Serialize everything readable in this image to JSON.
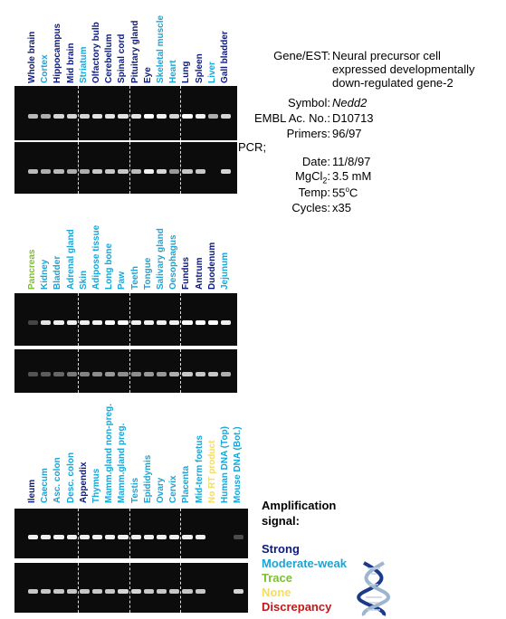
{
  "colors": {
    "strong": "#0d1a7a",
    "moderate_weak": "#19a5d6",
    "trace": "#7dbf2e",
    "none": "#f2dc6a",
    "discrepancy": "#c0181a",
    "gel": "#0c0c0c"
  },
  "panels": [
    {
      "tissues": [
        {
          "name": "Whole brain",
          "signal": "strong"
        },
        {
          "name": "Cortex",
          "signal": "moderate_weak"
        },
        {
          "name": "Hippocampus",
          "signal": "strong"
        },
        {
          "name": "Mid brain",
          "signal": "strong"
        },
        {
          "name": "Striatum",
          "signal": "moderate_weak"
        },
        {
          "name": "Olfactory bulb",
          "signal": "strong"
        },
        {
          "name": "Cerebellum",
          "signal": "strong"
        },
        {
          "name": "Spinal cord",
          "signal": "strong"
        },
        {
          "name": "Pituitary gland",
          "signal": "strong"
        },
        {
          "name": "Eye",
          "signal": "strong"
        },
        {
          "name": "Skeletal muscle",
          "signal": "moderate_weak"
        },
        {
          "name": "Heart",
          "signal": "moderate_weak"
        },
        {
          "name": "Lung",
          "signal": "strong"
        },
        {
          "name": "Spleen",
          "signal": "strong"
        },
        {
          "name": "Liver",
          "signal": "moderate_weak"
        },
        {
          "name": "Gall bladder",
          "signal": "strong"
        }
      ],
      "band_intensity_top": [
        0.75,
        0.7,
        0.85,
        0.85,
        0.85,
        0.9,
        0.9,
        0.9,
        0.9,
        1.0,
        0.95,
        0.85,
        1.0,
        0.95,
        0.7,
        0.85
      ],
      "band_intensity_bottom": [
        0.75,
        0.7,
        0.75,
        0.7,
        0.7,
        0.8,
        0.8,
        0.8,
        0.75,
        0.95,
        0.85,
        0.6,
        0.8,
        0.8,
        0.0,
        0.85
      ]
    },
    {
      "tissues": [
        {
          "name": "Pancreas",
          "signal": "trace"
        },
        {
          "name": "Kidney",
          "signal": "moderate_weak"
        },
        {
          "name": "Bladder",
          "signal": "moderate_weak"
        },
        {
          "name": "Adrenal gland",
          "signal": "moderate_weak"
        },
        {
          "name": "Skin",
          "signal": "moderate_weak"
        },
        {
          "name": "Adipose tissue",
          "signal": "moderate_weak"
        },
        {
          "name": "Long bone",
          "signal": "moderate_weak"
        },
        {
          "name": "Paw",
          "signal": "moderate_weak"
        },
        {
          "name": "Teeth",
          "signal": "moderate_weak"
        },
        {
          "name": "Tongue",
          "signal": "moderate_weak"
        },
        {
          "name": "Salivary gland",
          "signal": "moderate_weak"
        },
        {
          "name": "Oesophagus",
          "signal": "moderate_weak"
        },
        {
          "name": "Fundus",
          "signal": "strong"
        },
        {
          "name": "Antrum",
          "signal": "strong"
        },
        {
          "name": "Duodenum",
          "signal": "strong"
        },
        {
          "name": "Jejunum",
          "signal": "moderate_weak"
        }
      ],
      "band_intensity_top": [
        0.15,
        0.9,
        0.95,
        0.95,
        0.95,
        0.95,
        1.0,
        1.0,
        0.95,
        0.95,
        0.95,
        0.95,
        1.0,
        1.0,
        1.0,
        0.95
      ],
      "band_intensity_bottom": [
        0.25,
        0.3,
        0.35,
        0.45,
        0.5,
        0.55,
        0.6,
        0.55,
        0.55,
        0.6,
        0.6,
        0.7,
        0.8,
        0.8,
        0.8,
        0.7
      ]
    },
    {
      "tissues": [
        {
          "name": "Ileum",
          "signal": "strong"
        },
        {
          "name": "Caecum",
          "signal": "moderate_weak"
        },
        {
          "name": "Asc. colon",
          "signal": "moderate_weak"
        },
        {
          "name": "Desc. colon",
          "signal": "moderate_weak"
        },
        {
          "name": "Appendix",
          "signal": "strong"
        },
        {
          "name": "Thymus",
          "signal": "moderate_weak"
        },
        {
          "name": "Mamm.gland non-preg.",
          "signal": "moderate_weak"
        },
        {
          "name": "Mamm.gland preg.",
          "signal": "moderate_weak"
        },
        {
          "name": "Testis",
          "signal": "moderate_weak"
        },
        {
          "name": "Epididymis",
          "signal": "moderate_weak"
        },
        {
          "name": "Ovary",
          "signal": "moderate_weak"
        },
        {
          "name": "Cervix",
          "signal": "moderate_weak"
        },
        {
          "name": "Placenta",
          "signal": "moderate_weak"
        },
        {
          "name": "Mid-term foetus",
          "signal": "moderate_weak"
        },
        {
          "name": "No RT product",
          "signal": "none"
        },
        {
          "name": "Human DNA (Top)",
          "signal": "moderate_weak"
        },
        {
          "name": "Mouse DNA (Bot.)",
          "signal": "moderate_weak"
        }
      ],
      "band_intensity_top": [
        0.95,
        0.95,
        0.95,
        0.95,
        0.95,
        0.95,
        0.95,
        0.95,
        0.95,
        0.95,
        0.95,
        0.95,
        0.95,
        0.95,
        0.0,
        0.0,
        0.2
      ],
      "band_intensity_bottom": [
        0.8,
        0.8,
        0.8,
        0.8,
        0.8,
        0.8,
        0.8,
        0.85,
        0.85,
        0.8,
        0.8,
        0.8,
        0.8,
        0.8,
        0.0,
        0.0,
        0.85
      ]
    }
  ],
  "info": {
    "gene_label": "Gene/EST:",
    "gene_value_lines": [
      "Neural precursor cell",
      "expressed developmentally",
      "down-regulated gene-2"
    ],
    "symbol_label": "Symbol:",
    "symbol_value": "Nedd2",
    "embl_label": "EMBL Ac. No.:",
    "embl_value": "D10713",
    "primers_label": "Primers:",
    "primers_value": "96/97",
    "pcr_label": "PCR;",
    "date_label": "Date:",
    "date_value": "11/8/97",
    "mgcl_label_main": "MgCl",
    "mgcl_label_sub": "2",
    "mgcl_label_end": ":",
    "mgcl_value": "3.5 mM",
    "temp_label": "Temp:",
    "temp_value_main": "55",
    "temp_value_sup": "o",
    "temp_value_end": "C",
    "cycles_label": "Cycles:",
    "cycles_value": "x35"
  },
  "legend": {
    "title_line1": "Amplification",
    "title_line2": "signal:",
    "items": [
      {
        "label": "Strong",
        "key": "strong"
      },
      {
        "label": "Moderate-weak",
        "key": "moderate_weak"
      },
      {
        "label": "Trace",
        "key": "trace"
      },
      {
        "label": "None",
        "key": "none"
      },
      {
        "label": "Discrepancy",
        "key": "discrepancy"
      }
    ]
  }
}
